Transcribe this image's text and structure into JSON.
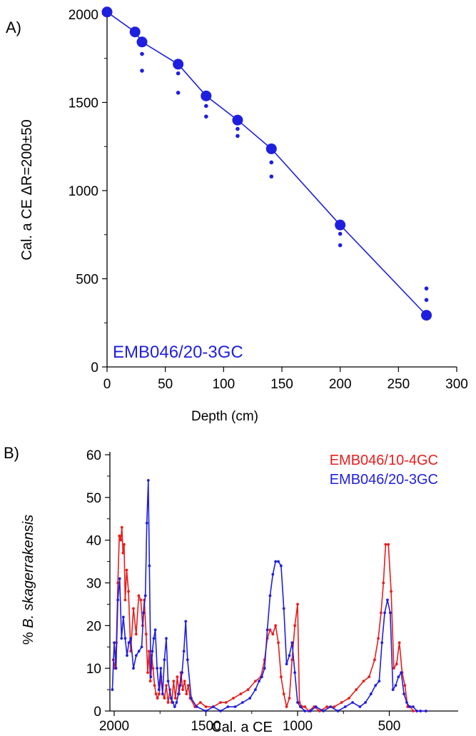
{
  "chart_data": [
    {
      "type": "line",
      "panel_label": "A)",
      "xlabel": "Depth (cm)",
      "ylabel": "Cal. a CE ΔR=200±50",
      "xlim": [
        0,
        300
      ],
      "ylim": [
        0,
        2000
      ],
      "x_ticks": [
        0,
        50,
        100,
        150,
        200,
        250,
        300
      ],
      "y_ticks": [
        0,
        500,
        1000,
        1500,
        2000
      ],
      "annotation": "EMB046/20-3GC",
      "annotation_color": "#1f1fe0",
      "series": [
        {
          "color": "#1f1fe0",
          "x": [
            0,
            24,
            30,
            61,
            85,
            112,
            141,
            200,
            274
          ],
          "y": [
            2013,
            1900,
            1843,
            1717,
            1537,
            1400,
            1237,
            805,
            293
          ]
        }
      ],
      "error_dots": {
        "x": [
          30,
          30,
          61,
          61,
          85,
          85,
          112,
          112,
          141,
          141,
          200,
          200,
          274,
          274
        ],
        "y": [
          1775,
          1680,
          1665,
          1555,
          1480,
          1420,
          1350,
          1310,
          1160,
          1080,
          755,
          690,
          445,
          380
        ]
      },
      "grid": false
    },
    {
      "type": "line",
      "panel_label": "B)",
      "xlabel": "Cal. a CE",
      "ylabel_prefix": "% ",
      "ylabel_italic": "B. skagerrakensis",
      "xlim": [
        2000,
        300
      ],
      "x_reversed": true,
      "ylim": [
        0,
        60
      ],
      "x_ticks": [
        2000,
        1500,
        1000,
        500
      ],
      "y_ticks": [
        0,
        10,
        20,
        30,
        40,
        50,
        60
      ],
      "legend_position": "top-right",
      "grid": false,
      "series": [
        {
          "name": "EMB046/10-4GC",
          "color": "#e81c1c",
          "x": [
            2005,
            1996,
            1988,
            1980,
            1972,
            1964,
            1958,
            1952,
            1946,
            1940,
            1932,
            1922,
            1910,
            1895,
            1880,
            1866,
            1855,
            1845,
            1836,
            1826,
            1817,
            1810,
            1803,
            1796,
            1788,
            1780,
            1772,
            1764,
            1755,
            1745,
            1736,
            1726,
            1716,
            1706,
            1696,
            1686,
            1676,
            1666,
            1656,
            1646,
            1636,
            1626,
            1616,
            1606,
            1596,
            1586,
            1560,
            1530,
            1500,
            1460,
            1420,
            1390,
            1350,
            1310,
            1270,
            1230,
            1200,
            1180,
            1165,
            1150,
            1135,
            1120,
            1105,
            1090,
            1075,
            1060,
            1045,
            1030,
            1015,
            1000,
            990,
            975,
            960,
            940,
            910,
            880,
            840,
            800,
            760,
            720,
            680,
            640,
            610,
            580,
            560,
            545,
            532,
            520,
            505,
            490,
            475,
            460,
            445,
            430,
            415,
            400,
            385,
            370,
            350,
            330,
            300
          ],
          "y": [
            12,
            10,
            16,
            30,
            41,
            40,
            43,
            37,
            39,
            26,
            33,
            28,
            14,
            24,
            18,
            27,
            26,
            20,
            26,
            18,
            9,
            14,
            7,
            13,
            10,
            6,
            4,
            3,
            4,
            8,
            4,
            3,
            6,
            2,
            5,
            2,
            7,
            3,
            8,
            4,
            9,
            5,
            7,
            4,
            6,
            3,
            1,
            2,
            1,
            1,
            2,
            2,
            3,
            4,
            5,
            7,
            8,
            12,
            17,
            19,
            18,
            20,
            16,
            8,
            4,
            1,
            3,
            12,
            20,
            25,
            2,
            1,
            1,
            0,
            1,
            0,
            1,
            1,
            2,
            3,
            5,
            7,
            8,
            12,
            17,
            23,
            30,
            39,
            39,
            28,
            10,
            11,
            16,
            9,
            6,
            1,
            1,
            0,
            0,
            0,
            0
          ]
        },
        {
          "name": "EMB046/20-3GC",
          "color": "#1f1fe0",
          "x": [
            2010,
            2000,
            1990,
            1980,
            1970,
            1960,
            1950,
            1940,
            1930,
            1920,
            1910,
            1895,
            1880,
            1865,
            1850,
            1840,
            1830,
            1822,
            1814,
            1808,
            1800,
            1792,
            1784,
            1776,
            1766,
            1756,
            1746,
            1736,
            1726,
            1716,
            1706,
            1690,
            1680,
            1670,
            1660,
            1650,
            1640,
            1630,
            1620,
            1610,
            1600,
            1580,
            1550,
            1500,
            1460,
            1420,
            1380,
            1340,
            1300,
            1260,
            1230,
            1210,
            1195,
            1180,
            1165,
            1150,
            1135,
            1120,
            1105,
            1090,
            1075,
            1060,
            1045,
            1030,
            1015,
            1000,
            985,
            960,
            930,
            900,
            860,
            820,
            780,
            740,
            700,
            660,
            630,
            600,
            575,
            555,
            540,
            525,
            510,
            495,
            480,
            465,
            450,
            435,
            420,
            405,
            390,
            370,
            350,
            330,
            300
          ],
          "y": [
            5,
            16,
            10,
            26,
            31,
            17,
            22,
            17,
            13,
            16,
            17,
            10,
            13,
            14,
            15,
            23,
            27,
            44,
            54,
            34,
            8,
            14,
            17,
            19,
            10,
            5,
            10,
            4,
            12,
            17,
            7,
            3,
            2,
            1,
            2,
            4,
            6,
            9,
            14,
            21,
            12,
            3,
            1,
            0,
            1,
            0,
            1,
            1,
            2,
            3,
            5,
            7,
            8,
            10,
            19,
            27,
            32,
            35,
            35,
            34,
            24,
            11,
            13,
            16,
            9,
            2,
            1,
            0,
            0,
            1,
            0,
            1,
            0,
            1,
            2,
            1,
            2,
            4,
            6,
            7,
            16,
            23,
            26,
            23,
            5,
            6,
            8,
            9,
            4,
            2,
            1,
            1,
            0,
            0,
            0
          ]
        }
      ]
    }
  ]
}
